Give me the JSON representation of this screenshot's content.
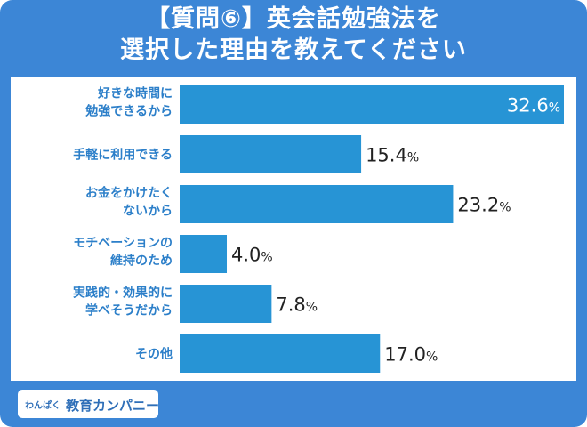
{
  "header": {
    "title_line1": "【質問⑥】英会話勉強法を",
    "title_line2": "選択した理由を教えてください"
  },
  "logo": {
    "text_small": "わんぱく",
    "text_main": "教育カンパニー"
  },
  "colors": {
    "background": "#3c86d6",
    "bar": "#2794d5",
    "label": "#2c7fc9"
  },
  "chart_data": {
    "type": "bar",
    "orientation": "horizontal",
    "categories": [
      [
        "好きな時間に",
        "勉強できるから"
      ],
      [
        "手軽に利用できる"
      ],
      [
        "お金をかけたく",
        "ないから"
      ],
      [
        "モチベーションの",
        "維持のため"
      ],
      [
        "実践的・効果的に",
        "学べそうだから"
      ],
      [
        "その他"
      ]
    ],
    "values": [
      32.6,
      15.4,
      23.2,
      4.0,
      7.8,
      17.0
    ],
    "value_labels": [
      "32.6",
      "15.4",
      "23.2",
      "4.0",
      "7.8",
      "17.0"
    ],
    "unit": "%",
    "xlim": [
      0,
      32.6
    ],
    "grid": false,
    "legend": "none"
  }
}
